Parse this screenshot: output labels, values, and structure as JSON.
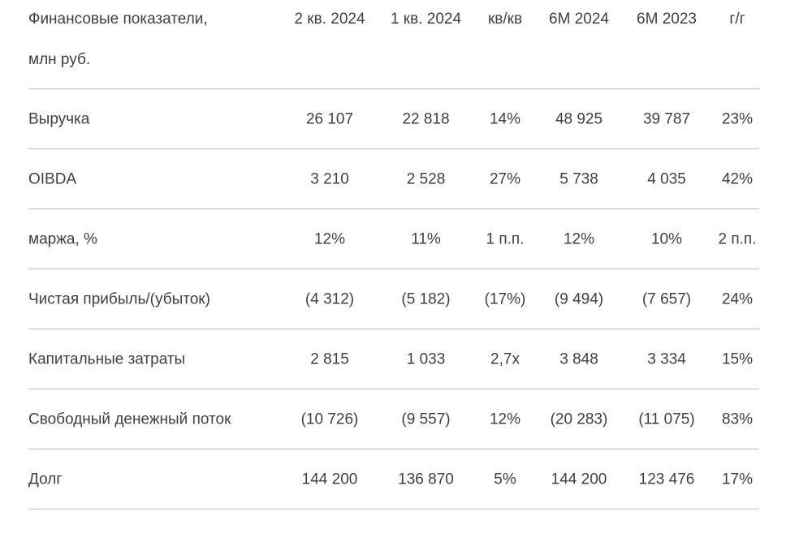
{
  "header": {
    "label_line1": "Финансовые показатели,",
    "label_line2": "млн руб.",
    "columns": [
      "2 кв. 2024",
      "1 кв. 2024",
      "кв/кв",
      "6М 2024",
      "6М 2023",
      "г/г"
    ]
  },
  "rows": [
    {
      "label": "Выручка",
      "values": [
        "26 107",
        "22 818",
        "14%",
        "48 925",
        "39 787",
        "23%"
      ]
    },
    {
      "label": "OIBDA",
      "values": [
        "3 210",
        "2 528",
        "27%",
        "5 738",
        "4 035",
        "42%"
      ]
    },
    {
      "label": "маржа, %",
      "values": [
        "12%",
        "11%",
        "1 п.п.",
        "12%",
        "10%",
        "2 п.п."
      ]
    },
    {
      "label": "Чистая прибыль/(убыток)",
      "values": [
        "(4 312)",
        "(5 182)",
        "(17%)",
        "(9 494)",
        "(7 657)",
        "24%"
      ]
    },
    {
      "label": "Капитальные затраты",
      "values": [
        "2 815",
        "1 033",
        "2,7х",
        "3 848",
        "3 334",
        "15%"
      ]
    },
    {
      "label": "Свободный денежный поток",
      "values": [
        "(10 726)",
        "(9 557)",
        "12%",
        "(20 283)",
        "(11 075)",
        "83%"
      ]
    },
    {
      "label": "Долг",
      "values": [
        "144 200",
        "136 870",
        "5%",
        "144 200",
        "123 476",
        "17%"
      ]
    }
  ]
}
